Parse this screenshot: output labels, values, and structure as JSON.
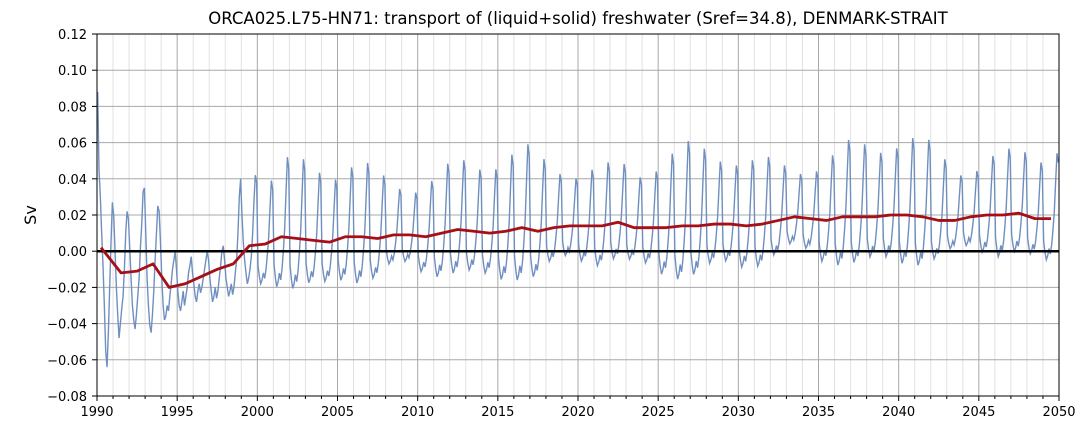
{
  "chart_data": {
    "type": "line",
    "title": "ORCA025.L75-HN71: transport of (liquid+solid) freshwater (Sref=34.8), DENMARK-STRAIT",
    "xlabel": "",
    "ylabel": "Sv",
    "xlim": [
      1990,
      2050
    ],
    "ylim": [
      -0.08,
      0.12
    ],
    "x_ticks": [
      1990,
      1995,
      2000,
      2005,
      2010,
      2015,
      2020,
      2025,
      2030,
      2035,
      2040,
      2045,
      2050
    ],
    "y_ticks": [
      -0.08,
      -0.06,
      -0.04,
      -0.02,
      0.0,
      0.02,
      0.04,
      0.06,
      0.08,
      0.1,
      0.12
    ],
    "x_tick_labels": [
      "1990",
      "1995",
      "2000",
      "2005",
      "2010",
      "2015",
      "2020",
      "2025",
      "2030",
      "2035",
      "2040",
      "2045",
      "2050"
    ],
    "y_tick_labels": [
      "−0.08",
      "−0.06",
      "−0.04",
      "−0.02",
      "0.00",
      "0.02",
      "0.04",
      "0.06",
      "0.08",
      "0.10",
      "0.12"
    ],
    "grid": true,
    "zero_line": 0.0,
    "colors": {
      "monthly": "#6f8fc0",
      "annual": "#a50f15",
      "zero": "#000000",
      "grid": "#c0c0c0"
    },
    "series": [
      {
        "kind": "monthly",
        "values": [
          0.088,
          0.045,
          0.03,
          0.01,
          -0.008,
          -0.03,
          -0.055,
          -0.064,
          -0.045,
          -0.02,
          0.005,
          0.027,
          0.02,
          0.0,
          -0.02,
          -0.035,
          -0.048,
          -0.04,
          -0.032,
          -0.025,
          -0.01,
          0.01,
          0.022,
          0.018,
          0.002,
          -0.015,
          -0.03,
          -0.038,
          -0.043,
          -0.035,
          -0.025,
          -0.015,
          0.002,
          0.015,
          0.033,
          0.035,
          0.01,
          -0.015,
          -0.03,
          -0.041,
          -0.045,
          -0.035,
          -0.022,
          -0.005,
          0.01,
          0.025,
          0.022,
          0.005,
          -0.015,
          -0.03,
          -0.038,
          -0.036,
          -0.03,
          -0.033,
          -0.025,
          -0.018,
          -0.01,
          -0.005,
          0.0,
          -0.01,
          -0.022,
          -0.03,
          -0.033,
          -0.028,
          -0.022,
          -0.03,
          -0.025,
          -0.02,
          -0.012,
          -0.008,
          -0.003,
          -0.012,
          -0.018,
          -0.025,
          -0.028,
          -0.022,
          -0.018,
          -0.023,
          -0.02,
          -0.015,
          -0.01,
          -0.005,
          0.0,
          -0.005,
          -0.015,
          -0.022,
          -0.028,
          -0.025,
          -0.02,
          -0.026,
          -0.022,
          -0.015,
          -0.008,
          0.0,
          0.003,
          -0.005,
          -0.015,
          -0.02,
          -0.025,
          -0.022,
          -0.018,
          -0.024,
          -0.02,
          -0.012,
          -0.005,
          0.01,
          0.03,
          0.04,
          0.02,
          0.005,
          -0.005,
          -0.012,
          -0.018,
          -0.015,
          -0.01,
          -0.003,
          0.01,
          0.028,
          0.042,
          0.038
        ]
      },
      {
        "kind": "annual",
        "x": [
          1990.25,
          1991.5,
          1992.5,
          1993.5,
          1994.5,
          1995.5,
          1996.5,
          1997.5,
          1998.5,
          1999.5,
          2000.5,
          2001.5,
          2002.5,
          2003.5,
          2004.5,
          2005.5,
          2006.5,
          2007.5,
          2008.5,
          2009.5,
          2010.5,
          2011.5,
          2012.5,
          2013.5,
          2014.5,
          2015.5,
          2016.5,
          2017.5,
          2018.5,
          2019.5,
          2020.5,
          2021.5,
          2022.5,
          2023.5,
          2024.5,
          2025.5,
          2026.5,
          2027.5,
          2028.5,
          2029.5,
          2030.5,
          2031.5,
          2032.5,
          2033.5,
          2034.5,
          2035.5,
          2036.5,
          2037.5,
          2038.5,
          2039.5,
          2040.5,
          2041.5,
          2042.5,
          2043.5,
          2044.5,
          2045.5,
          2046.5,
          2047.5,
          2048.5,
          2049.5
        ],
        "values": [
          0.002,
          -0.012,
          -0.011,
          -0.007,
          -0.02,
          -0.018,
          -0.014,
          -0.01,
          -0.007,
          0.003,
          0.004,
          0.008,
          0.007,
          0.006,
          0.005,
          0.008,
          0.008,
          0.007,
          0.009,
          0.009,
          0.008,
          0.01,
          0.012,
          0.011,
          0.01,
          0.011,
          0.013,
          0.011,
          0.013,
          0.014,
          0.014,
          0.014,
          0.016,
          0.013,
          0.013,
          0.013,
          0.014,
          0.014,
          0.015,
          0.015,
          0.014,
          0.015,
          0.017,
          0.019,
          0.018,
          0.017,
          0.019,
          0.019,
          0.019,
          0.02,
          0.02,
          0.019,
          0.017,
          0.017,
          0.019,
          0.02,
          0.02,
          0.021,
          0.018,
          0.018
        ]
      }
    ]
  }
}
